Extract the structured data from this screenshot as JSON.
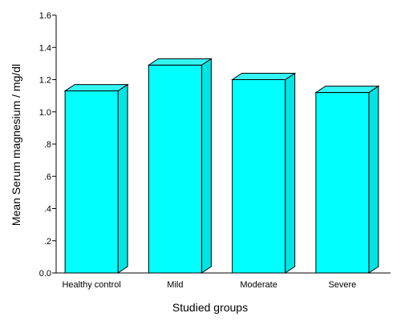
{
  "chart_data": {
    "type": "bar",
    "title": "",
    "xlabel": "Studied groups",
    "ylabel": "Mean Serum magnesium / mg/dl",
    "categories": [
      "Healthy  control",
      "Mild",
      "Moderate",
      "Severe"
    ],
    "values": [
      1.13,
      1.29,
      1.2,
      1.12
    ],
    "ylim": [
      0,
      1.6
    ],
    "yticks": [
      0,
      0.2,
      0.4,
      0.6,
      0.8,
      1.0,
      1.2,
      1.4,
      1.6
    ],
    "ytick_labels": [
      "0.0",
      ".2",
      ".4",
      ".6",
      ".8",
      "1.0",
      "1.2",
      "1.4",
      "1.6"
    ],
    "grid": false,
    "legend": "none",
    "style": "3d",
    "colors": {
      "bar_front": "#00ffff",
      "bar_top": "#33f5f5",
      "bar_side": "#00e3e3",
      "outline": "#000000"
    }
  }
}
